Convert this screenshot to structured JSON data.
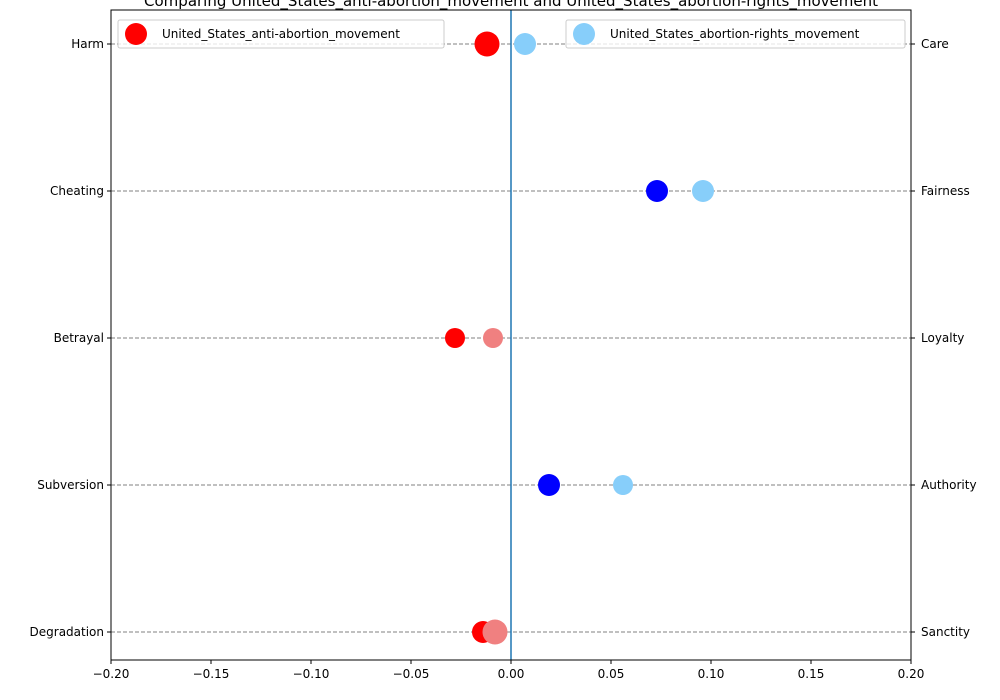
{
  "chart_data": {
    "type": "scatter",
    "title": "Comparing United_States_anti-abortion_movement and United_States_abortion-rights_movement",
    "xlim": [
      -0.2,
      0.2
    ],
    "x_ticks": [
      -0.2,
      -0.15,
      -0.1,
      -0.05,
      0.0,
      0.05,
      0.1,
      0.15,
      0.2
    ],
    "x_tick_labels": [
      "−0.20",
      "−0.15",
      "−0.10",
      "−0.05",
      "0.00",
      "0.05",
      "0.10",
      "0.15",
      "0.20"
    ],
    "categories_left": [
      "Harm",
      "Cheating",
      "Betrayal",
      "Subversion",
      "Degradation"
    ],
    "categories_right": [
      "Care",
      "Fairness",
      "Loyalty",
      "Authority",
      "Sanctity"
    ],
    "vertical_line_x": 0.0,
    "grid": "horizontal dashed",
    "legend_left": {
      "label": "United_States_anti-abortion_movement",
      "color": "#ff0000",
      "placement": "upper-left"
    },
    "legend_right": {
      "label": "United_States_abortion-rights_movement",
      "color": "#87cefa",
      "placement": "upper-right"
    },
    "points": [
      {
        "category": "Harm",
        "x": -0.012,
        "color": "#ff0000",
        "size": "large"
      },
      {
        "category": "Harm",
        "x": 0.007,
        "color": "#87cefa",
        "size": "medium"
      },
      {
        "category": "Cheating",
        "x": 0.073,
        "color": "#0000ff",
        "size": "medium"
      },
      {
        "category": "Cheating",
        "x": 0.096,
        "color": "#87cefa",
        "size": "medium"
      },
      {
        "category": "Betrayal",
        "x": -0.028,
        "color": "#ff0000",
        "size": "small"
      },
      {
        "category": "Betrayal",
        "x": -0.009,
        "color": "#f08080",
        "size": "small"
      },
      {
        "category": "Subversion",
        "x": 0.019,
        "color": "#0000ff",
        "size": "medium"
      },
      {
        "category": "Subversion",
        "x": 0.056,
        "color": "#87cefa",
        "size": "small"
      },
      {
        "category": "Degradation",
        "x": -0.014,
        "color": "#ff0000",
        "size": "medium"
      },
      {
        "category": "Degradation",
        "x": -0.008,
        "color": "#f08080",
        "size": "large"
      }
    ]
  }
}
